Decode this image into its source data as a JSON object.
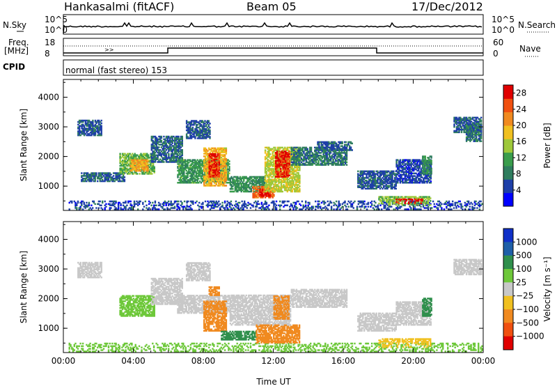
{
  "header": {
    "station": "Hankasalmi (fitACF)",
    "beam": "Beam 05",
    "date": "17/Dec/2012"
  },
  "strip": {
    "nsky_label": "N.Sky",
    "nsky_top": "10^5",
    "nsky_bot": "10^0",
    "nsearch_label": "N.Search",
    "nsearch_top": "10^5",
    "nsearch_bot": "10^0",
    "freq_label": "Freq.",
    "freq_unit": "[MHz]",
    "freq_top": "18",
    "freq_bot": "8",
    "nave_label": "Nave",
    "nave_top": "60",
    "nave_bot": "0",
    "cpid_label": "CPID",
    "cpid_value": "normal (fast stereo) 153",
    "nave_marker": ">>"
  },
  "colors": {
    "power": [
      "#0000ff",
      "#1e3fa8",
      "#2f7d5e",
      "#3a9d4c",
      "#9ec83a",
      "#f0c020",
      "#f08a20",
      "#f05010",
      "#e00000"
    ],
    "velocity": [
      "#e00000",
      "#f05010",
      "#f08a20",
      "#f0c020",
      "#c8c8c8",
      "#6ec83a",
      "#2f8f4c",
      "#1e5fa8",
      "#1030c8"
    ]
  },
  "chart_data": [
    {
      "type": "heatmap",
      "title": "Power",
      "xlabel": "",
      "ylabel": "Slant Range [km]",
      "xlim_hours": [
        0,
        24
      ],
      "ylim": [
        180,
        4600
      ],
      "yticks": [
        "1000",
        "2000",
        "3000",
        "4000"
      ],
      "colorbar_label": "Power [dB]",
      "colorbar_ticks": [
        "4",
        "8",
        "12",
        "16",
        "20",
        "24",
        "28"
      ],
      "colorbar_range": [
        0,
        30
      ],
      "regions": [
        {
          "t0": 0.3,
          "t1": 23.9,
          "r0": 200,
          "r1": 500,
          "value": 5
        },
        {
          "t0": 0.8,
          "t1": 2.2,
          "r0": 2700,
          "r1": 3200,
          "value": 6
        },
        {
          "t0": 1.0,
          "t1": 3.5,
          "r0": 1150,
          "r1": 1450,
          "value": 7
        },
        {
          "t0": 3.2,
          "t1": 5.2,
          "r0": 1400,
          "r1": 2100,
          "value": 13
        },
        {
          "t0": 3.8,
          "t1": 4.8,
          "r0": 1500,
          "r1": 1900,
          "value": 20
        },
        {
          "t0": 5.0,
          "t1": 6.8,
          "r0": 1800,
          "r1": 2700,
          "value": 7
        },
        {
          "t0": 6.5,
          "t1": 9.5,
          "r0": 1100,
          "r1": 1900,
          "value": 11
        },
        {
          "t0": 7.0,
          "t1": 8.4,
          "r0": 2600,
          "r1": 3200,
          "value": 6
        },
        {
          "t0": 8.0,
          "t1": 9.3,
          "r0": 1000,
          "r1": 2300,
          "value": 19
        },
        {
          "t0": 8.3,
          "t1": 8.9,
          "r0": 1300,
          "r1": 2100,
          "value": 27
        },
        {
          "t0": 9.5,
          "t1": 11.5,
          "r0": 800,
          "r1": 1300,
          "value": 10
        },
        {
          "t0": 10.8,
          "t1": 12.0,
          "r0": 600,
          "r1": 1000,
          "value": 24
        },
        {
          "t0": 11.2,
          "t1": 11.8,
          "r0": 650,
          "r1": 900,
          "value": 29
        },
        {
          "t0": 11.5,
          "t1": 13.5,
          "r0": 800,
          "r1": 2300,
          "value": 16
        },
        {
          "t0": 12.1,
          "t1": 12.9,
          "r0": 1300,
          "r1": 2200,
          "value": 27
        },
        {
          "t0": 13.0,
          "t1": 16.2,
          "r0": 1700,
          "r1": 2300,
          "value": 8
        },
        {
          "t0": 14.5,
          "t1": 16.5,
          "r0": 2200,
          "r1": 2500,
          "value": 6
        },
        {
          "t0": 16.8,
          "t1": 19.0,
          "r0": 900,
          "r1": 1500,
          "value": 6
        },
        {
          "t0": 19.0,
          "t1": 21.0,
          "r0": 1100,
          "r1": 1900,
          "value": 5
        },
        {
          "t0": 18.0,
          "t1": 21.0,
          "r0": 350,
          "r1": 650,
          "value": 14
        },
        {
          "t0": 19.0,
          "t1": 20.5,
          "r0": 400,
          "r1": 560,
          "value": 28
        },
        {
          "t0": 20.5,
          "t1": 21.0,
          "r0": 1400,
          "r1": 2000,
          "value": 10
        },
        {
          "t0": 22.3,
          "t1": 23.9,
          "r0": 2800,
          "r1": 3300,
          "value": 6
        },
        {
          "t0": 23.0,
          "t1": 23.9,
          "r0": 2500,
          "r1": 3100,
          "value": 8
        }
      ]
    },
    {
      "type": "heatmap",
      "title": "Velocity",
      "xlabel": "Time UT",
      "ylabel": "Slant Range [km]",
      "xlim_hours": [
        0,
        24
      ],
      "ylim": [
        180,
        4600
      ],
      "yticks": [
        "1000",
        "2000",
        "3000",
        "4000"
      ],
      "xticks": [
        "00:00",
        "04:00",
        "08:00",
        "12:00",
        "16:00",
        "20:00",
        "00:00"
      ],
      "colorbar_label": "Velocity [m s⁻¹]",
      "colorbar_ticks": [
        "1000",
        "500",
        "100",
        "25",
        "−25",
        "−100",
        "−500",
        "−1000"
      ],
      "regions": [
        {
          "t0": 0.3,
          "t1": 23.9,
          "r0": 200,
          "r1": 500,
          "value": 60
        },
        {
          "t0": 0.8,
          "t1": 2.2,
          "r0": 2700,
          "r1": 3200,
          "value": 0
        },
        {
          "t0": 3.2,
          "t1": 5.2,
          "r0": 1400,
          "r1": 2100,
          "value": 80
        },
        {
          "t0": 5.0,
          "t1": 6.8,
          "r0": 1800,
          "r1": 2700,
          "value": 0
        },
        {
          "t0": 6.5,
          "t1": 9.5,
          "r0": 1500,
          "r1": 2100,
          "value": 0
        },
        {
          "t0": 7.0,
          "t1": 8.4,
          "r0": 2600,
          "r1": 3200,
          "value": 0
        },
        {
          "t0": 8.0,
          "t1": 9.3,
          "r0": 900,
          "r1": 1900,
          "value": -200
        },
        {
          "t0": 8.3,
          "t1": 8.9,
          "r0": 2100,
          "r1": 2400,
          "value": -150
        },
        {
          "t0": 9.0,
          "t1": 11.0,
          "r0": 600,
          "r1": 900,
          "value": 150
        },
        {
          "t0": 9.5,
          "t1": 13.0,
          "r0": 1100,
          "r1": 2100,
          "value": 0
        },
        {
          "t0": 11.0,
          "t1": 13.5,
          "r0": 500,
          "r1": 1100,
          "value": -250
        },
        {
          "t0": 12.0,
          "t1": 12.9,
          "r0": 1300,
          "r1": 2100,
          "value": -150
        },
        {
          "t0": 13.0,
          "t1": 16.2,
          "r0": 1700,
          "r1": 2300,
          "value": 0
        },
        {
          "t0": 16.8,
          "t1": 19.0,
          "r0": 900,
          "r1": 1500,
          "value": 0
        },
        {
          "t0": 18.0,
          "t1": 21.0,
          "r0": 350,
          "r1": 650,
          "value": -60
        },
        {
          "t0": 19.0,
          "t1": 21.0,
          "r0": 1100,
          "r1": 1900,
          "value": 0
        },
        {
          "t0": 20.5,
          "t1": 21.0,
          "r0": 1400,
          "r1": 2000,
          "value": 150
        },
        {
          "t0": 22.3,
          "t1": 23.9,
          "r0": 2800,
          "r1": 3300,
          "value": 0
        }
      ]
    }
  ]
}
